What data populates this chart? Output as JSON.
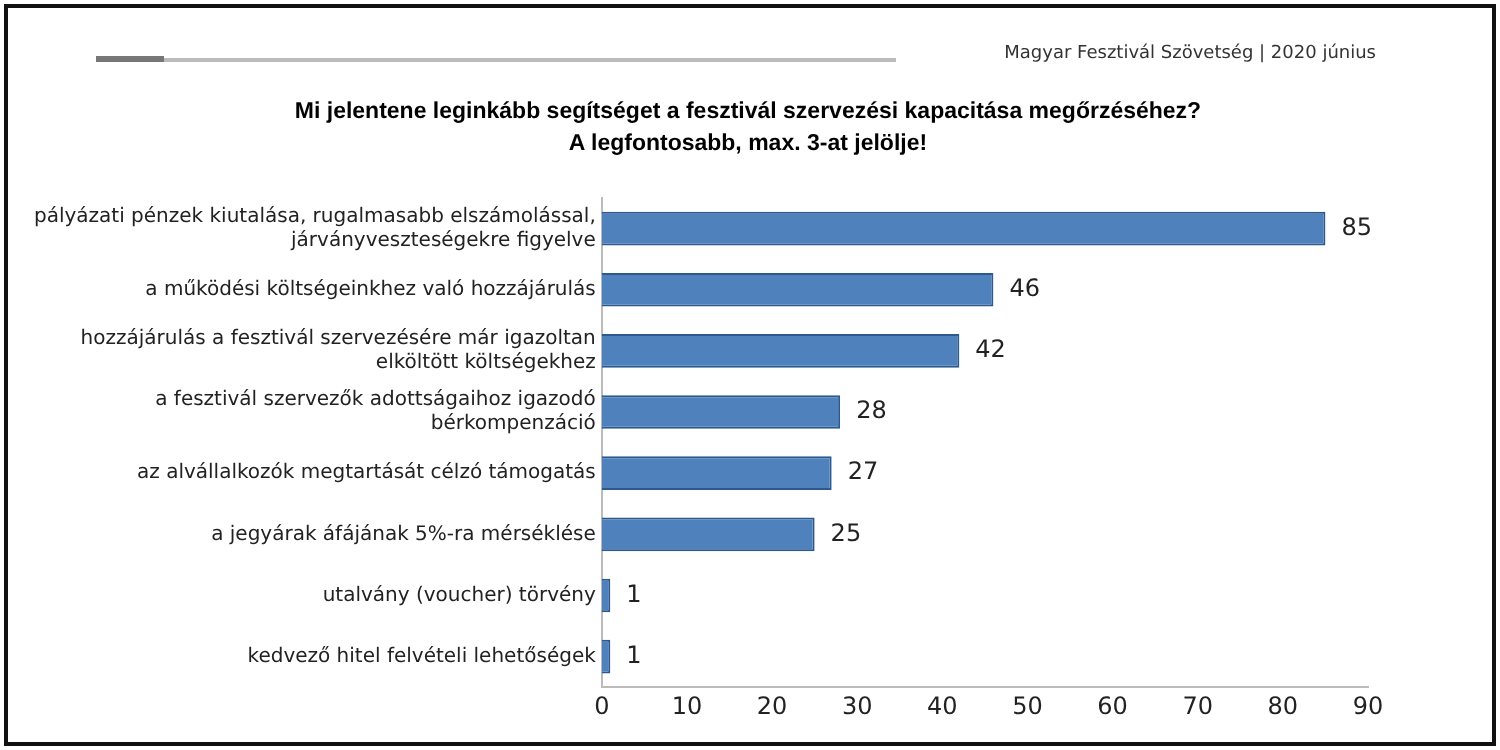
{
  "chart_data": {
    "type": "bar",
    "orientation": "horizontal",
    "title": "Mi jelentene leginkább segítséget a fesztivál szervezési kapacitása megőrzéséhez? A legfontosabb, max. 3-at jelölje!",
    "annotations": [
      "Magyar Fesztivál Szövetség |  2020 június"
    ],
    "categories": [
      "pályázati pénzek kiutalása, rugalmasabb elszámolással, járványveszteségekre figyelve",
      "a működési költségeinkhez való hozzájárulás",
      "hozzájárulás a fesztivál szervezésére már igazoltan elköltött költségekhez",
      "a fesztivál szervezők adottságaihoz igazodó bérkompenzáció",
      "az alvállalkozók megtartását célzó támogatás",
      "a jegyárak áfájának 5%-ra mérséklése",
      "utalvány (voucher) törvény",
      "kedvező hitel felvételi lehetőségek"
    ],
    "values": [
      85,
      46,
      42,
      28,
      27,
      25,
      1,
      1
    ],
    "color": "#4f81bd",
    "xlim": [
      0,
      90
    ],
    "xticks": [
      0,
      10,
      20,
      30,
      40,
      50,
      60,
      70,
      80,
      90
    ],
    "grid": false,
    "legend": false,
    "data_labels": true
  }
}
